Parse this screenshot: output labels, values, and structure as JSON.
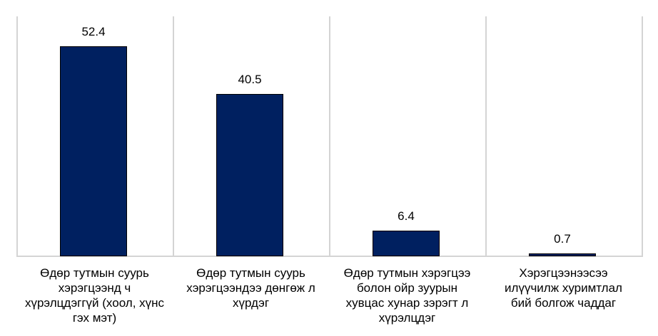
{
  "chart_data": {
    "type": "bar",
    "title": "",
    "xlabel": "",
    "ylabel": "",
    "ylim": [
      0,
      56
    ],
    "grid": "vertical category separators",
    "legend": "none",
    "bar_color": "#002060",
    "categories": [
      "Өдөр тутмын суурь хэрэгцээнд ч хүрэлцдэггүй (хоол, хүнс гэх мэт)",
      "Өдөр тутмын суурь хэрэгцээндээ дөнгөж л хүрдэг",
      "Өдөр тутмын хэрэгцээ болон ойр зуурын хувцас хунар зэрэгт л хүрэлцдэг",
      "Хэрэгцээнээсээ илүүчилж хуримтлал бий болгож чаддаг"
    ],
    "values": [
      52.4,
      40.5,
      6.4,
      0.7
    ]
  },
  "labels": {
    "values": [
      "52.4",
      "40.5",
      "6.4",
      "0.7"
    ],
    "categories": [
      [
        "Өдөр тутмын суурь",
        "хэрэгцээнд ч",
        "хүрэлцдэггүй (хоол, хүнс",
        "гэх мэт)"
      ],
      [
        "Өдөр тутмын суурь",
        "хэрэгцээндээ дөнгөж л",
        "хүрдэг"
      ],
      [
        "Өдөр тутмын хэрэгцээ",
        "болон ойр зуурын",
        "хувцас хунар зэрэгт л",
        "хүрэлцдэг"
      ],
      [
        "Хэрэгцээнээсээ",
        "илүүчилж хуримтлал",
        "бий болгож чаддаг"
      ]
    ]
  }
}
